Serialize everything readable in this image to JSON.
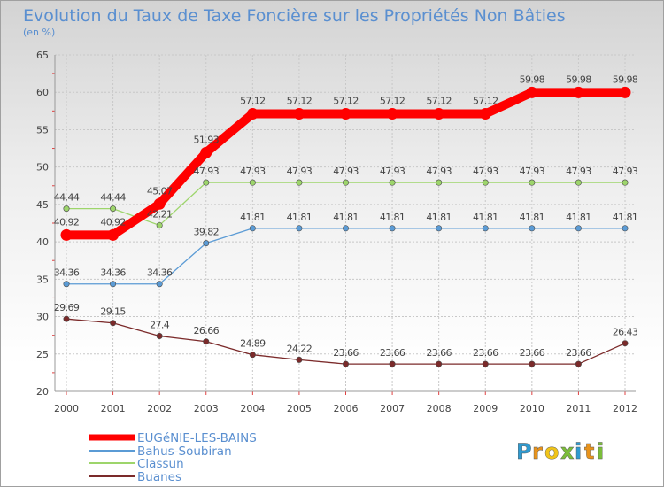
{
  "chart_data": {
    "type": "line",
    "title": "Evolution du Taux de Taxe Foncière sur les Propriétés Non Bâties",
    "subtitle": "(en %)",
    "xlabel": "",
    "ylabel": "",
    "categories": [
      "2000",
      "2001",
      "2002",
      "2003",
      "2004",
      "2005",
      "2006",
      "2007",
      "2008",
      "2009",
      "2010",
      "2011",
      "2012"
    ],
    "ylim": [
      20,
      65
    ],
    "yticks": [
      20,
      25,
      30,
      35,
      40,
      45,
      50,
      55,
      60,
      65
    ],
    "grid": true,
    "legend_position": "bottom-left",
    "series": [
      {
        "name": "EUGéNIE-LES-BAINS",
        "color": "#ff0000",
        "values": [
          40.92,
          40.92,
          45.07,
          51.93,
          57.12,
          57.12,
          57.12,
          57.12,
          57.12,
          57.12,
          59.98,
          59.98,
          59.98
        ],
        "labels": [
          "40.92",
          "40.92",
          "45.07",
          "51.93",
          "57.12",
          "57.12",
          "57.12",
          "57.12",
          "57.12",
          "57.12",
          "59.98",
          "59.98",
          "59.98"
        ]
      },
      {
        "name": "Bahus-Soubiran",
        "color": "#5b9bd5",
        "values": [
          34.36,
          34.36,
          34.36,
          39.82,
          41.81,
          41.81,
          41.81,
          41.81,
          41.81,
          41.81,
          41.81,
          41.81,
          41.81
        ],
        "labels": [
          "34.36",
          "34.36",
          "34.36",
          "39.82",
          "41.81",
          "41.81",
          "41.81",
          "41.81",
          "41.81",
          "41.81",
          "41.81",
          "41.81",
          "41.81"
        ]
      },
      {
        "name": "Classun",
        "color": "#9dd56b",
        "values": [
          44.44,
          44.44,
          42.21,
          47.93,
          47.93,
          47.93,
          47.93,
          47.93,
          47.93,
          47.93,
          47.93,
          47.93,
          47.93
        ],
        "labels": [
          "44.44",
          "44.44",
          "42.21",
          "47.93",
          "47.93",
          "47.93",
          "47.93",
          "47.93",
          "47.93",
          "47.93",
          "47.93",
          "47.93",
          "47.93"
        ]
      },
      {
        "name": "Buanes",
        "color": "#7b2a2a",
        "values": [
          29.69,
          29.15,
          27.4,
          26.66,
          24.89,
          24.22,
          23.66,
          23.66,
          23.66,
          23.66,
          23.66,
          23.66,
          26.43
        ],
        "labels": [
          "29.69",
          "29.15",
          "27.4",
          "26.66",
          "24.89",
          "24.22",
          "23.66",
          "23.66",
          "23.66",
          "23.66",
          "23.66",
          "23.66",
          "26.43"
        ]
      }
    ]
  },
  "logo": {
    "letters": [
      "P",
      "r",
      "o",
      "x",
      "i",
      "t",
      "i"
    ],
    "colors": [
      "#2f9ad0",
      "#e8931c",
      "#f0c419",
      "#7bbd3a",
      "#2f9ad0",
      "#e8931c",
      "#7bbd3a"
    ]
  }
}
